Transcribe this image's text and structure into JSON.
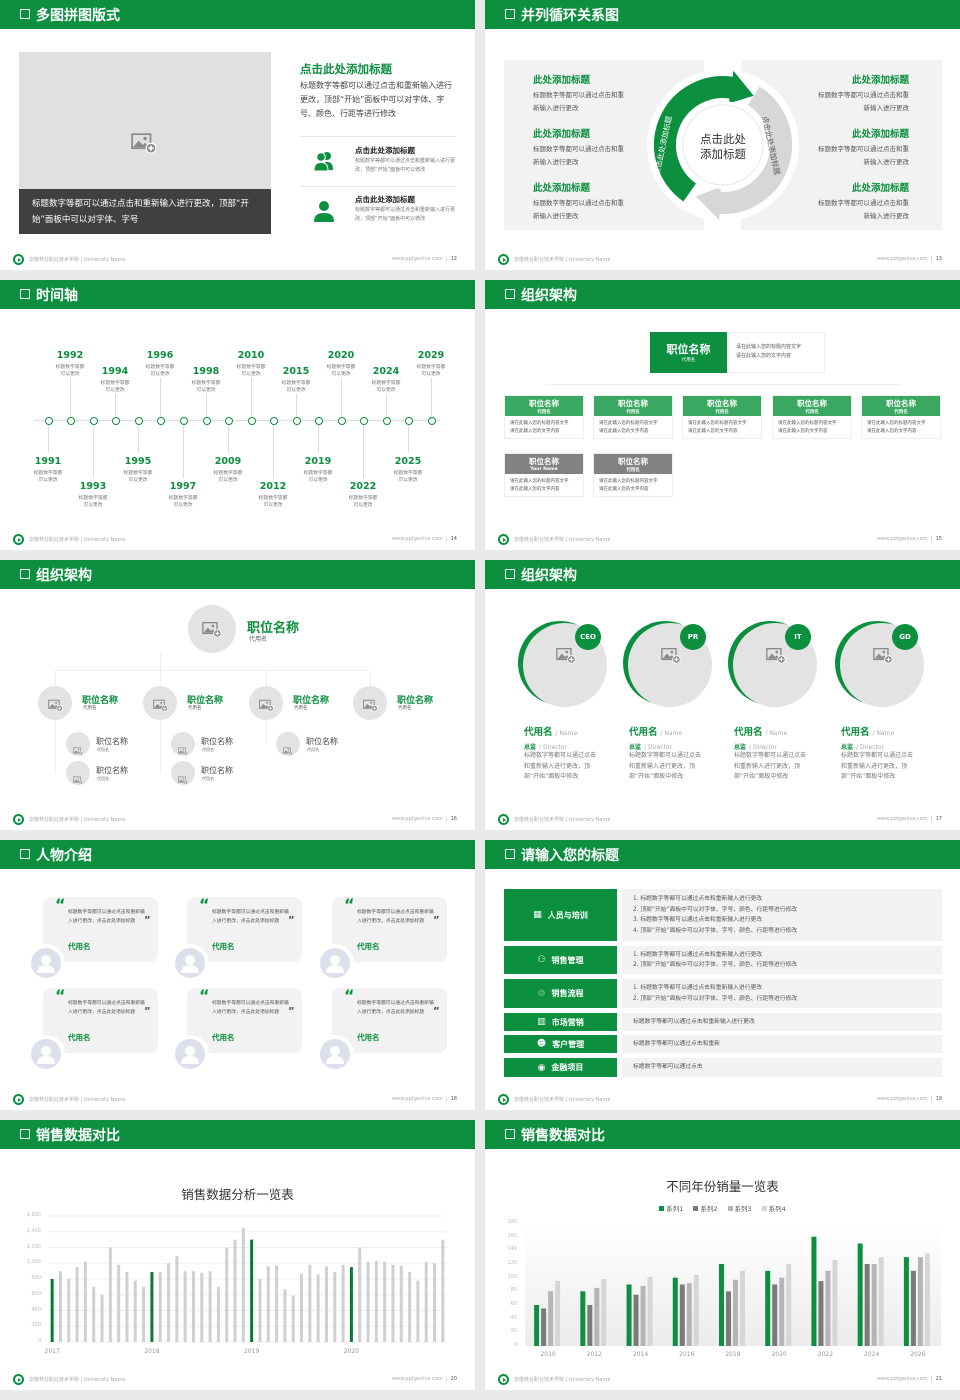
{
  "colors": {
    "primary": "#0c8f3f",
    "dark_gray": "#7a7a7a",
    "mid_gray": "#b5b5b5",
    "light_gray": "#d6d6d6",
    "panel": "#f2f2f2",
    "caption_bg": "#404040"
  },
  "footer": {
    "school": "安徽林业职业技术学院 | University Name",
    "site": "www.pptgenius.com"
  },
  "s1": {
    "title": "多图拼图版式",
    "page": "12",
    "image_icon": "image-add-icon",
    "caption": "标题数字等都可以通过点击和重新输入进行更改，顶部“开始”面板中可以对字体、字号",
    "heading": "点击此处添加标题",
    "body": "标题数字等都可以通过点击和重新输入进行更改，顶部“开始”面板中可以对字体、字号、颜色、行距等进行修改",
    "items": [
      {
        "icon": "users-icon",
        "title": "点击此处添加标题",
        "desc": "标题数字等都可以通过点击和重新输入进行更改，顶部“开始”面板中可以修改"
      },
      {
        "icon": "user-icon",
        "title": "点击此处添加标题",
        "desc": "标题数字等都可以通过点击和重新输入进行更改，顶部“开始”面板中可以修改"
      }
    ]
  },
  "s2": {
    "title": "并列循环关系图",
    "page": "13",
    "center": [
      "点击此处",
      "添加标题"
    ],
    "arc_left": "点击此处添加标题",
    "arc_right": "点击此处添加标题",
    "left": [
      {
        "title": "此处添加标题",
        "desc": [
          "标题数字等都可以通过点击和重",
          "新输入进行更改"
        ]
      },
      {
        "title": "此处添加标题",
        "desc": [
          "标题数字等都可以通过点击和重",
          "新输入进行更改"
        ]
      },
      {
        "title": "此处添加标题",
        "desc": [
          "标题数字等都可以通过点击和重",
          "新输入进行更改"
        ]
      }
    ],
    "right": [
      {
        "title": "此处添加标题",
        "desc": [
          "标题数字等都可以通过点击和重",
          "新输入进行更改"
        ]
      },
      {
        "title": "此处添加标题",
        "desc": [
          "标题数字等都可以通过点击和重",
          "新输入进行更改"
        ]
      },
      {
        "title": "此处添加标题",
        "desc": [
          "标题数字等都可以通过点击和重",
          "新输入进行更改"
        ]
      }
    ]
  },
  "s3": {
    "title": "时间轴",
    "page": "14",
    "years": [
      "1991",
      "1992",
      "1993",
      "1994",
      "1995",
      "1996",
      "1997",
      "1998",
      "2009",
      "2010",
      "2012",
      "2015",
      "2019",
      "2020",
      "2022",
      "2024",
      "2025",
      "2029"
    ],
    "desc": [
      "标题数字等都",
      "可以更改"
    ]
  },
  "s4": {
    "title": "组织架构",
    "page": "15",
    "top": {
      "title": "职位名称",
      "sub": "代用名",
      "desc": [
        "请在此输入您的标题内容文字",
        "请在此输入您的文字内容"
      ]
    },
    "boxes": [
      {
        "title": "职位名称",
        "sub": "代用名",
        "desc": [
          "请在此输入您的标题内容文字",
          "请在此输入您的文字内容"
        ],
        "tone": "green"
      },
      {
        "title": "职位名称",
        "sub": "代用名",
        "desc": [
          "请在此输入您的标题内容文字",
          "请在此输入您的文字内容"
        ],
        "tone": "green"
      },
      {
        "title": "职位名称",
        "sub": "代用名",
        "desc": [
          "请在此输入您的标题内容文字",
          "请在此输入您的文字内容"
        ],
        "tone": "green"
      },
      {
        "title": "职位名称",
        "sub": "代用名",
        "desc": [
          "请在此输入您的标题内容文字",
          "请在此输入您的文字内容"
        ],
        "tone": "green"
      },
      {
        "title": "职位名称",
        "sub": "代用名",
        "desc": [
          "请在此输入您的标题内容文字",
          "请在此输入您的文字内容"
        ],
        "tone": "green"
      },
      {
        "title": "职位名称",
        "sub": "Your Name",
        "desc": [
          "请在此输入您的标题内容文字",
          "请在此输入您的文字内容"
        ],
        "tone": "gray"
      },
      {
        "title": "职位名称",
        "sub": "代用名",
        "desc": [
          "请在此输入您的标题内容文字",
          "请在此输入您的文字内容"
        ],
        "tone": "gray"
      }
    ]
  },
  "s5": {
    "title": "组织架构",
    "page": "16",
    "top": {
      "title": "职位名称",
      "sub": "代用名"
    },
    "level2": [
      {
        "title": "职位名称",
        "sub": "代用名"
      },
      {
        "title": "职位名称",
        "sub": "代用名"
      },
      {
        "title": "职位名称",
        "sub": "代用名"
      },
      {
        "title": "职位名称",
        "sub": "代用名"
      }
    ],
    "level3": [
      {
        "title": "职位名称",
        "sub": "代用名"
      },
      {
        "title": "职位名称",
        "sub": "代用名"
      },
      {
        "title": "职位名称",
        "sub": "代用名"
      },
      {
        "title": "职位名称",
        "sub": "代用名"
      },
      {
        "title": "职位名称",
        "sub": "代用名"
      }
    ]
  },
  "s6": {
    "title": "组织架构",
    "page": "17",
    "people": [
      {
        "badge": "CEO",
        "name": "代用名",
        "name_en": "/ Name",
        "role": "总监",
        "role_en": "/ Director",
        "desc": "标题数字等都可以通过点击和重新输入进行更改，顶部“开始”面板中修改"
      },
      {
        "badge": "PR",
        "name": "代用名",
        "name_en": "/ Name",
        "role": "总监",
        "role_en": "/ Director",
        "desc": "标题数字等都可以通过点击和重新输入进行更改，顶部“开始”面板中修改"
      },
      {
        "badge": "IT",
        "name": "代用名",
        "name_en": "/ Name",
        "role": "总监",
        "role_en": "/ Director",
        "desc": "标题数字等都可以通过点击和重新输入进行更改，顶部“开始”面板中修改"
      },
      {
        "badge": "GD",
        "name": "代用名",
        "name_en": "/ Name",
        "role": "总监",
        "role_en": "/ Director",
        "desc": "标题数字等都可以通过点击和重新输入进行更改，顶部“开始”面板中修改"
      }
    ]
  },
  "s7": {
    "title": "人物介绍",
    "page": "18",
    "cards": [
      {
        "quote": "标题数字等都可以通过点击和重新输入进行更改，点击此处添加标题",
        "name": "代用名"
      },
      {
        "quote": "标题数字等都可以通过点击和重新输入进行更改，点击此处添加标题",
        "name": "代用名"
      },
      {
        "quote": "标题数字等都可以通过点击和重新输入进行更改，点击此处添加标题",
        "name": "代用名"
      },
      {
        "quote": "标题数字等都可以通过点击和重新输入进行更改，点击此处添加标题",
        "name": "代用名"
      },
      {
        "quote": "标题数字等都可以通过点击和重新输入进行更改，点击此处添加标题",
        "name": "代用名"
      },
      {
        "quote": "标题数字等都可以通过点击和重新输入进行更改，点击此处添加标题",
        "name": "代用名"
      }
    ]
  },
  "s8": {
    "title": "请输入您的标题",
    "page": "19",
    "rows": [
      {
        "label": "人员与培训",
        "icon": "training-icon",
        "lines": [
          "1.   标题数字等都可以通过点击和重新输入进行更改",
          "2.   顶部“开始”面板中可以对字体、字号、颜色、行距等进行修改",
          "3.   标题数字等都可以通过点击和重新输入进行更改",
          "4.   顶部“开始”面板中可以对字体、字号、颜色、行距等进行修改"
        ]
      },
      {
        "label": "销售管理",
        "icon": "sales-management-icon",
        "lines": [
          "1.   标题数字等都可以通过点击和重新输入进行更改",
          "2.   顶部“开始”面板中可以对字体、字号、颜色、行距等进行修改"
        ]
      },
      {
        "label": "销售流程",
        "icon": "process-icon",
        "lines": [
          "1.   标题数字等都可以通过点击和重新输入进行更改",
          "2.   顶部“开始”面板中可以对字体、字号、颜色、行距等进行修改"
        ]
      },
      {
        "label": "市场营销",
        "icon": "bar-chart-icon",
        "lines": [
          "标题数字等都可以通过点击和重新输入进行更改"
        ]
      },
      {
        "label": "客户管理",
        "icon": "customers-icon",
        "lines": [
          "标题数字等都可以通过点击和重新"
        ]
      },
      {
        "label": "金融项目",
        "icon": "finance-icon",
        "lines": [
          "标题数字等都可以通过点击"
        ]
      }
    ]
  },
  "s9": {
    "title": "销售数据对比",
    "page": "20"
  },
  "s10": {
    "title": "销售数据对比",
    "page": "21"
  },
  "chart_data": [
    {
      "type": "bar",
      "title": "销售数据分析一览表",
      "xlabel": "",
      "ylabel": "",
      "ylim": [
        0,
        1600
      ],
      "yticks": [
        "0",
        "200",
        "400",
        "600",
        "800",
        "1,000",
        "1,200",
        "1,400",
        "1,600"
      ],
      "xtick_labels": [
        "2017",
        "2018",
        "2019",
        "2020"
      ],
      "grid": true,
      "highlight": "first bar of each year in green, others gray",
      "values": [
        800,
        900,
        800,
        950,
        1020,
        700,
        600,
        1200,
        980,
        890,
        780,
        700,
        890,
        890,
        1000,
        1090,
        900,
        900,
        880,
        900,
        700,
        1200,
        1300,
        1450,
        1300,
        800,
        960,
        970,
        670,
        590,
        870,
        980,
        860,
        960,
        890,
        980,
        950,
        1200,
        1020,
        1030,
        1020,
        980,
        970,
        890,
        780,
        1020,
        1000,
        1300
      ]
    },
    {
      "type": "bar",
      "title": "不同年份销量一览表",
      "xlabel": "",
      "ylabel": "",
      "ylim": [
        0,
        180
      ],
      "yticks": [
        "0",
        "20",
        "40",
        "60",
        "80",
        "100",
        "120",
        "140",
        "160",
        "180"
      ],
      "categories": [
        "2010",
        "2012",
        "2014",
        "2016",
        "2018",
        "2020",
        "2022",
        "2024",
        "2026"
      ],
      "legend": "top",
      "series": [
        {
          "name": "系列1",
          "color": "#0c8f3f",
          "values": [
            60,
            80,
            90,
            100,
            120,
            110,
            160,
            150,
            130
          ]
        },
        {
          "name": "系列2",
          "color": "#7a7a7a",
          "values": [
            55,
            60,
            75,
            90,
            80,
            90,
            95,
            120,
            110
          ]
        },
        {
          "name": "系列3",
          "color": "#b5b5b5",
          "values": [
            80,
            85,
            88,
            92,
            97,
            100,
            110,
            120,
            130
          ]
        },
        {
          "name": "系列4",
          "color": "#d6d6d6",
          "values": [
            95,
            98,
            101,
            104,
            110,
            120,
            126,
            130,
            135
          ]
        }
      ]
    }
  ]
}
